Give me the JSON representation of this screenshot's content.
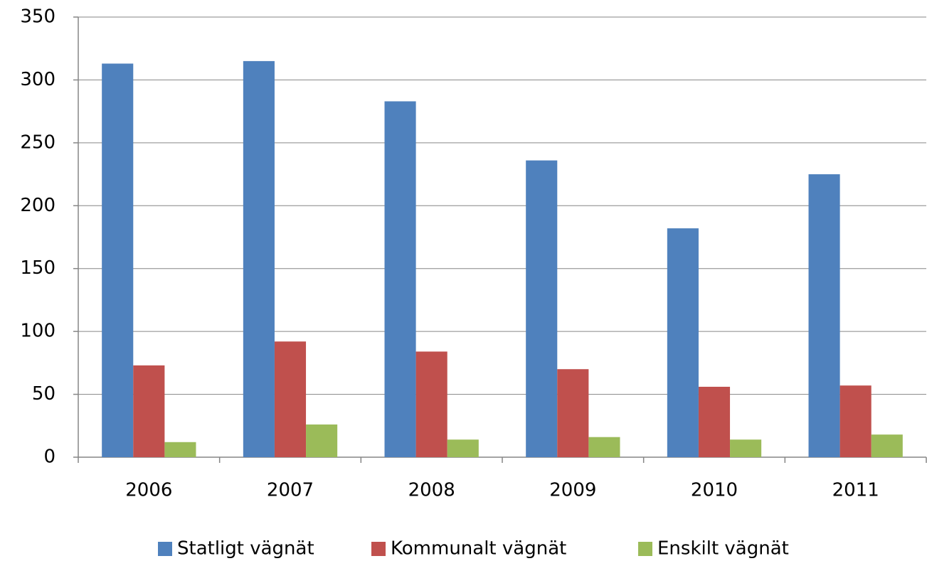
{
  "chart_data": {
    "type": "bar",
    "categories": [
      "2006",
      "2007",
      "2008",
      "2009",
      "2010",
      "2011"
    ],
    "series": [
      {
        "name": "Statligt vägnät",
        "color": "#4f81bd",
        "values": [
          313,
          315,
          283,
          236,
          182,
          225
        ]
      },
      {
        "name": "Kommunalt vägnät",
        "color": "#c0504d",
        "values": [
          73,
          92,
          84,
          70,
          56,
          57
        ]
      },
      {
        "name": "Enskilt vägnät",
        "color": "#9bbb59",
        "values": [
          12,
          26,
          14,
          16,
          14,
          18
        ]
      }
    ],
    "ylim": [
      0,
      350
    ],
    "yticks": [
      0,
      50,
      100,
      150,
      200,
      250,
      300,
      350
    ],
    "grid": true,
    "legend": "bottom"
  }
}
